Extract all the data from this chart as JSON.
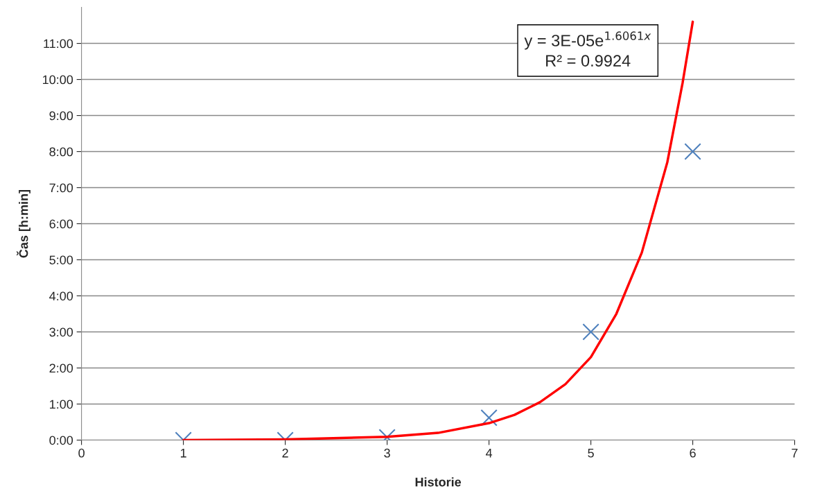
{
  "chart_data": {
    "type": "scatter",
    "xlabel": "Historie",
    "ylabel": "Čas [h:min]",
    "xlim": [
      0,
      7
    ],
    "xticks": [
      0,
      1,
      2,
      3,
      4,
      5,
      6,
      7
    ],
    "ylim": [
      0,
      12
    ],
    "yticks": [
      {
        "value": 0,
        "label": "0:00"
      },
      {
        "value": 1,
        "label": "1:00"
      },
      {
        "value": 2,
        "label": "2:00"
      },
      {
        "value": 3,
        "label": "3:00"
      },
      {
        "value": 4,
        "label": "4:00"
      },
      {
        "value": 5,
        "label": "5:00"
      },
      {
        "value": 6,
        "label": "6:00"
      },
      {
        "value": 7,
        "label": "7:00"
      },
      {
        "value": 8,
        "label": "8:00"
      },
      {
        "value": 9,
        "label": "9:00"
      },
      {
        "value": 10,
        "label": "10:00"
      },
      {
        "value": 11,
        "label": "11:00"
      }
    ],
    "grid": "y",
    "series": [
      {
        "marker": "cross",
        "color": "#4f81bd",
        "x": [
          1,
          2,
          3,
          4,
          5,
          6
        ],
        "values": [
          0,
          0,
          0.08,
          0.62,
          3.0,
          8.0
        ]
      },
      {
        "type": "line",
        "marker": "none",
        "line_style": "solid",
        "color": "#ff0000",
        "x": [
          1,
          2,
          3,
          3.5,
          4,
          4.25,
          4.5,
          4.75,
          5,
          5.25,
          5.5,
          5.75,
          5.9,
          6
        ],
        "values": [
          0,
          0.02,
          0.09,
          0.2,
          0.47,
          0.7,
          1.05,
          1.55,
          2.3,
          3.5,
          5.2,
          7.7,
          9.9,
          11.6
        ]
      }
    ],
    "annotations": [
      "y = 3E-05e$^{1.6061x}$",
      "R² = 0.9924"
    ]
  }
}
